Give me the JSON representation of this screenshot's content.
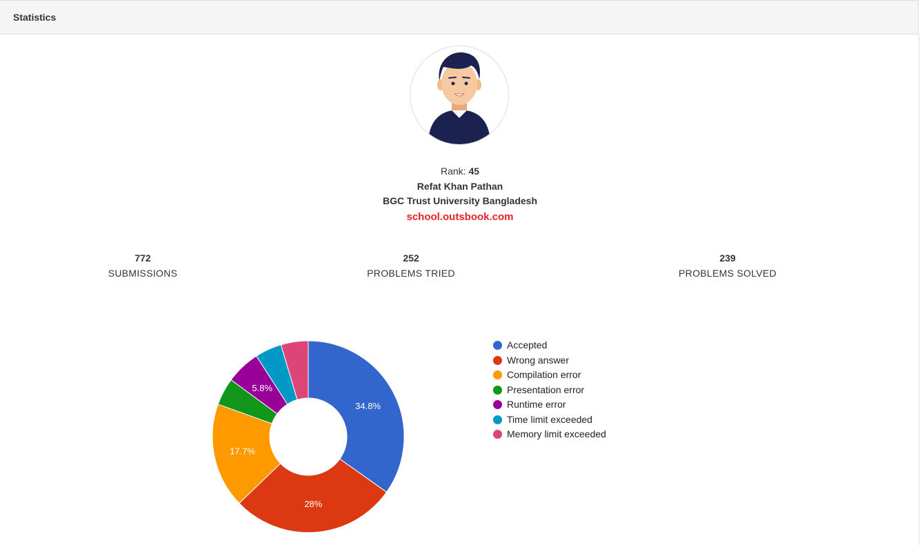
{
  "header": {
    "title": "Statistics"
  },
  "profile": {
    "rank_label": "Rank:",
    "rank_value": "45",
    "name": "Refat Khan Pathan",
    "university": "BGC Trust University Bangladesh",
    "watermark": "school.outsbook.com"
  },
  "stats": [
    {
      "value": "772",
      "label": "SUBMISSIONS"
    },
    {
      "value": "252",
      "label": "PROBLEMS TRIED"
    },
    {
      "value": "239",
      "label": "PROBLEMS SOLVED"
    }
  ],
  "chart_data": {
    "type": "pie",
    "donut": true,
    "legend_position": "right",
    "categories": [
      "Accepted",
      "Wrong answer",
      "Compilation error",
      "Presentation error",
      "Runtime error",
      "Time limit exceeded",
      "Memory limit exceeded"
    ],
    "values": [
      34.8,
      28.0,
      17.7,
      4.6,
      5.8,
      4.5,
      4.6
    ],
    "labels": [
      "34.8%",
      "28%",
      "17.7%",
      "",
      "5.8%",
      "",
      ""
    ],
    "colors": [
      "#3366cc",
      "#dc3912",
      "#ff9900",
      "#109618",
      "#990099",
      "#0099c6",
      "#dd4477"
    ]
  }
}
